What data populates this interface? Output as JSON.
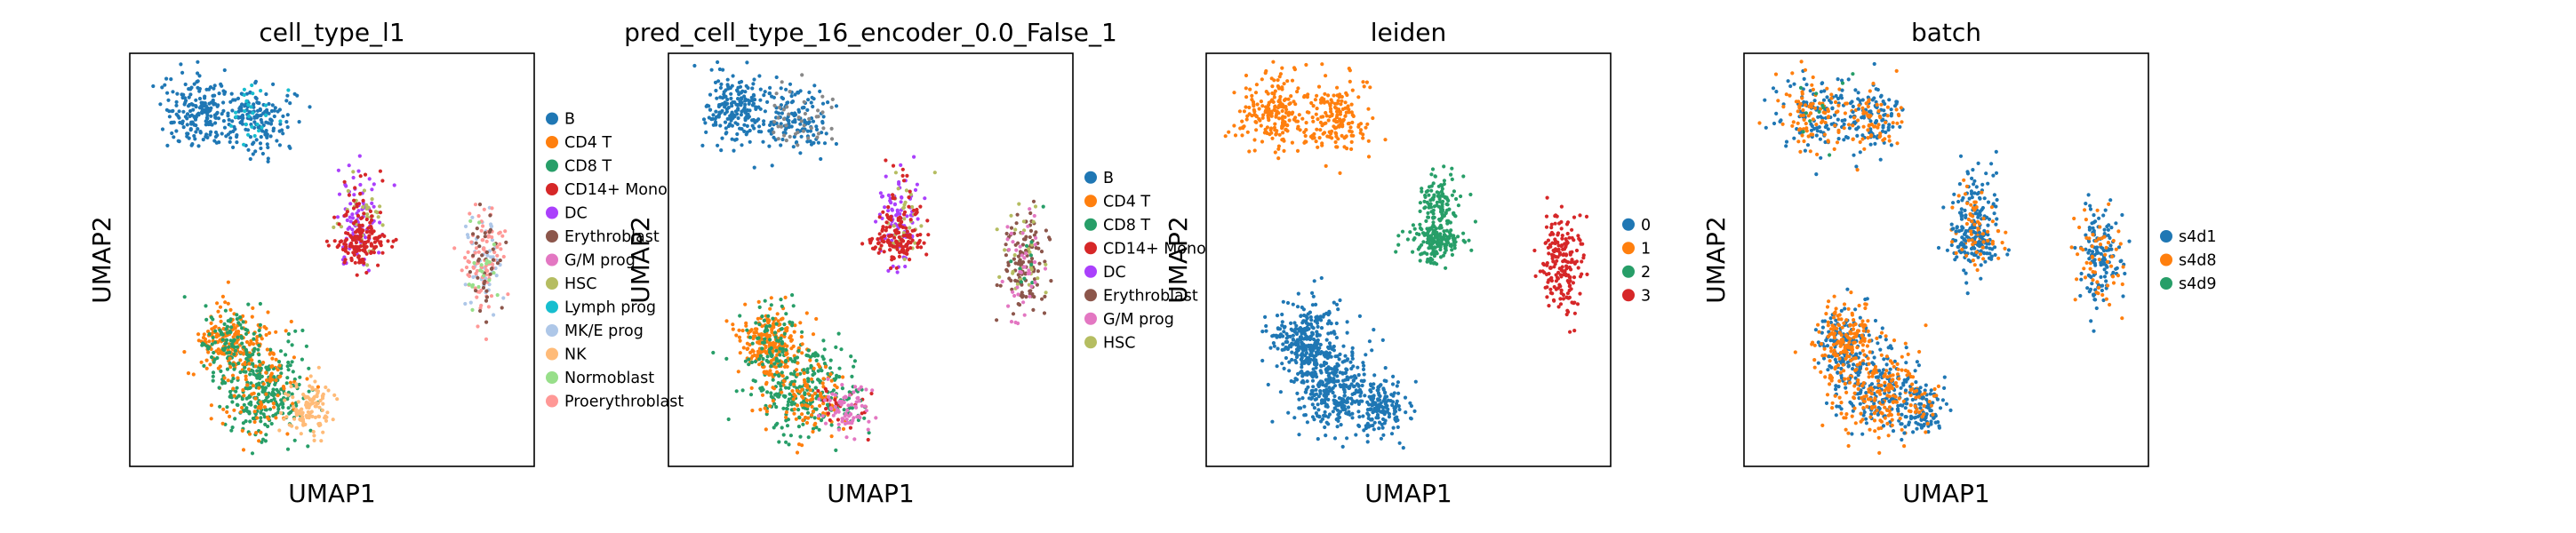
{
  "chart_data": [
    {
      "type": "scatter",
      "title": "cell_type_l1",
      "xlabel": "UMAP1",
      "ylabel": "UMAP2",
      "legend_placement": "right",
      "grid": false,
      "legend": [
        {
          "label": "B",
          "color": "#1f77b4"
        },
        {
          "label": "CD4 T",
          "color": "#ff7f0e"
        },
        {
          "label": "CD8 T",
          "color": "#279e68"
        },
        {
          "label": "CD14+ Mono",
          "color": "#d62728"
        },
        {
          "label": "DC",
          "color": "#aa40fc"
        },
        {
          "label": "Erythroblast",
          "color": "#8c564b"
        },
        {
          "label": "G/M prog",
          "color": "#e377c2"
        },
        {
          "label": "HSC",
          "color": "#b5bd61"
        },
        {
          "label": "Lymph prog",
          "color": "#17becf"
        },
        {
          "label": "MK/E prog",
          "color": "#aec7e8"
        },
        {
          "label": "NK",
          "color": "#ffbb78"
        },
        {
          "label": "Normoblast",
          "color": "#98df8a"
        },
        {
          "label": "Proerythroblast",
          "color": "#ff9896"
        }
      ]
    },
    {
      "type": "scatter",
      "title": "pred_cell_type_16_encoder_0.0_False_1",
      "xlabel": "UMAP1",
      "ylabel": "UMAP2",
      "legend_placement": "right",
      "grid": false,
      "legend": [
        {
          "label": "B",
          "color": "#1f77b4"
        },
        {
          "label": "CD4 T",
          "color": "#ff7f0e"
        },
        {
          "label": "CD8 T",
          "color": "#279e68"
        },
        {
          "label": "CD14+ Mono",
          "color": "#d62728"
        },
        {
          "label": "DC",
          "color": "#aa40fc"
        },
        {
          "label": "Erythroblast",
          "color": "#8c564b"
        },
        {
          "label": "G/M prog",
          "color": "#e377c2"
        },
        {
          "label": "HSC",
          "color": "#b5bd61"
        }
      ]
    },
    {
      "type": "scatter",
      "title": "leiden",
      "xlabel": "UMAP1",
      "ylabel": "UMAP2",
      "legend_placement": "right",
      "grid": false,
      "legend": [
        {
          "label": "0",
          "color": "#1f77b4"
        },
        {
          "label": "1",
          "color": "#ff7f0e"
        },
        {
          "label": "2",
          "color": "#279e68"
        },
        {
          "label": "3",
          "color": "#d62728"
        }
      ]
    },
    {
      "type": "scatter",
      "title": "batch",
      "xlabel": "UMAP1",
      "ylabel": "UMAP2",
      "legend_placement": "right",
      "grid": false,
      "legend": [
        {
          "label": "s4d1",
          "color": "#1f77b4"
        },
        {
          "label": "s4d8",
          "color": "#ff7f0e"
        },
        {
          "label": "s4d9",
          "color": "#279e68"
        }
      ]
    }
  ]
}
